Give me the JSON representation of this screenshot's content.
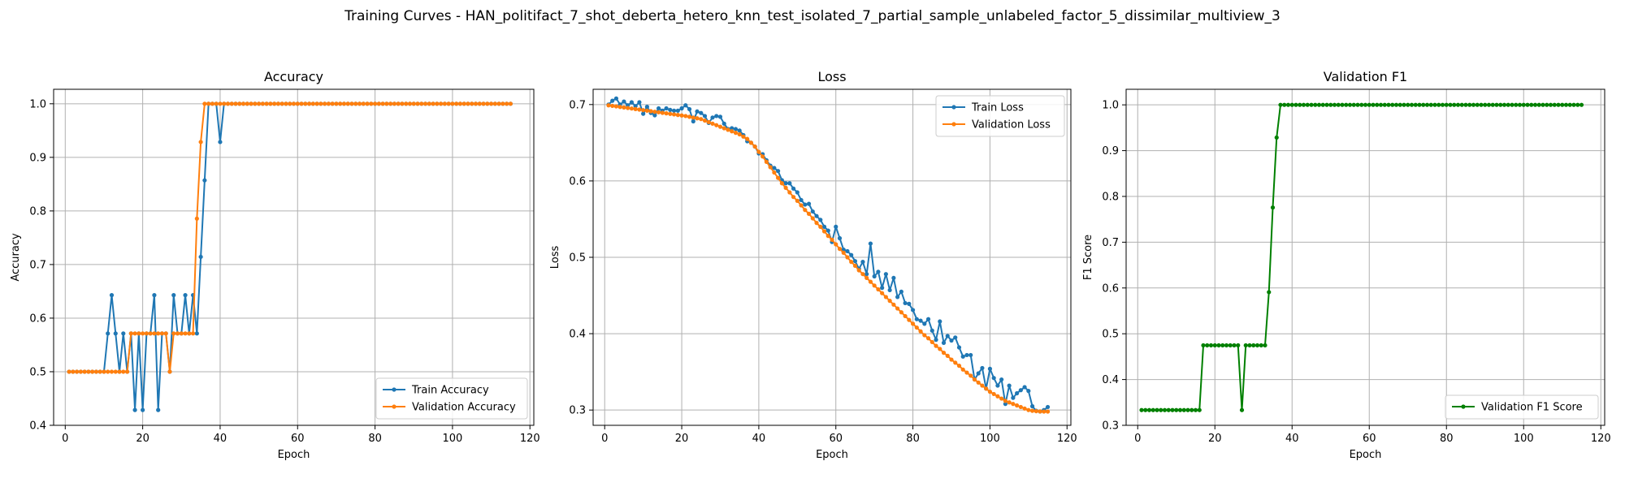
{
  "suptitle": "Training Curves - HAN_politifact_7_shot_deberta_hetero_knn_test_isolated_7_partial_sample_unlabeled_factor_5_dissimilar_multiview_3",
  "colors": {
    "train": "#1f77b4",
    "validation": "#ff7f0e",
    "f1": "#008000",
    "grid": "#b0b0b0"
  },
  "chart_data": [
    {
      "type": "line",
      "title": "Accuracy",
      "xlabel": "Epoch",
      "ylabel": "Accuracy",
      "xlim": [
        -3,
        121
      ],
      "ylim": [
        0.4,
        1.027
      ],
      "xticks": [
        0,
        20,
        40,
        60,
        80,
        100,
        120
      ],
      "yticks": [
        0.4,
        0.5,
        0.6,
        0.7,
        0.8,
        0.9,
        1.0
      ],
      "ytick_decimals": 1,
      "grid": true,
      "legend_position": "lower-right",
      "series": [
        {
          "name": "Train Accuracy",
          "color": "#1f77b4",
          "x_start": 1,
          "values": [
            0.5,
            0.5,
            0.5,
            0.5,
            0.5,
            0.5,
            0.5,
            0.5,
            0.5,
            0.5,
            0.5714,
            0.6429,
            0.5714,
            0.5,
            0.5714,
            0.5,
            0.5714,
            0.4286,
            0.5714,
            0.4286,
            0.5714,
            0.5714,
            0.6429,
            0.4286,
            0.5714,
            0.5714,
            0.5,
            0.6429,
            0.5714,
            0.5714,
            0.6429,
            0.5714,
            0.6429,
            0.5714,
            0.7143,
            0.8571,
            1.0,
            1.0,
            1.0,
            0.9286,
            1.0,
            1.0,
            1.0,
            1.0,
            1.0,
            1.0,
            1.0,
            1.0,
            1.0,
            1.0,
            1.0,
            1.0,
            1.0,
            1.0,
            1.0,
            1.0,
            1.0,
            1.0,
            1.0,
            1.0,
            1.0,
            1.0,
            1.0,
            1.0,
            1.0,
            1.0,
            1.0,
            1.0,
            1.0,
            1.0,
            1.0,
            1.0,
            1.0,
            1.0,
            1.0,
            1.0,
            1.0,
            1.0,
            1.0,
            1.0,
            1.0,
            1.0,
            1.0,
            1.0,
            1.0,
            1.0,
            1.0,
            1.0,
            1.0,
            1.0,
            1.0,
            1.0,
            1.0,
            1.0,
            1.0,
            1.0,
            1.0,
            1.0,
            1.0,
            1.0,
            1.0,
            1.0,
            1.0,
            1.0,
            1.0,
            1.0,
            1.0,
            1.0,
            1.0,
            1.0,
            1.0,
            1.0,
            1.0,
            1.0,
            1.0
          ]
        },
        {
          "name": "Validation Accuracy",
          "color": "#ff7f0e",
          "x_start": 1,
          "values": [
            0.5,
            0.5,
            0.5,
            0.5,
            0.5,
            0.5,
            0.5,
            0.5,
            0.5,
            0.5,
            0.5,
            0.5,
            0.5,
            0.5,
            0.5,
            0.5,
            0.5714,
            0.5714,
            0.5714,
            0.5714,
            0.5714,
            0.5714,
            0.5714,
            0.5714,
            0.5714,
            0.5714,
            0.5,
            0.5714,
            0.5714,
            0.5714,
            0.5714,
            0.5714,
            0.5714,
            0.7857,
            0.9286,
            1.0,
            1.0,
            1.0,
            1.0,
            1.0,
            1.0,
            1.0,
            1.0,
            1.0,
            1.0,
            1.0,
            1.0,
            1.0,
            1.0,
            1.0,
            1.0,
            1.0,
            1.0,
            1.0,
            1.0,
            1.0,
            1.0,
            1.0,
            1.0,
            1.0,
            1.0,
            1.0,
            1.0,
            1.0,
            1.0,
            1.0,
            1.0,
            1.0,
            1.0,
            1.0,
            1.0,
            1.0,
            1.0,
            1.0,
            1.0,
            1.0,
            1.0,
            1.0,
            1.0,
            1.0,
            1.0,
            1.0,
            1.0,
            1.0,
            1.0,
            1.0,
            1.0,
            1.0,
            1.0,
            1.0,
            1.0,
            1.0,
            1.0,
            1.0,
            1.0,
            1.0,
            1.0,
            1.0,
            1.0,
            1.0,
            1.0,
            1.0,
            1.0,
            1.0,
            1.0,
            1.0,
            1.0,
            1.0,
            1.0,
            1.0,
            1.0,
            1.0,
            1.0,
            1.0,
            1.0
          ]
        }
      ]
    },
    {
      "type": "line",
      "title": "Loss",
      "xlabel": "Epoch",
      "ylabel": "Loss",
      "xlim": [
        -3,
        121
      ],
      "ylim": [
        0.28,
        0.72
      ],
      "xticks": [
        0,
        20,
        40,
        60,
        80,
        100,
        120
      ],
      "yticks": [
        0.3,
        0.4,
        0.5,
        0.6,
        0.7
      ],
      "ytick_decimals": 1,
      "grid": true,
      "legend_position": "upper-right",
      "series": [
        {
          "name": "Train Loss",
          "color": "#1f77b4",
          "x_start": 1,
          "values": [
            0.7,
            0.705,
            0.708,
            0.7,
            0.704,
            0.699,
            0.703,
            0.698,
            0.703,
            0.688,
            0.697,
            0.689,
            0.686,
            0.695,
            0.692,
            0.695,
            0.693,
            0.692,
            0.692,
            0.695,
            0.699,
            0.694,
            0.678,
            0.691,
            0.689,
            0.685,
            0.676,
            0.683,
            0.685,
            0.684,
            0.675,
            0.668,
            0.669,
            0.668,
            0.666,
            0.66,
            0.652,
            0.65,
            0.645,
            0.636,
            0.635,
            0.627,
            0.62,
            0.617,
            0.613,
            0.601,
            0.597,
            0.597,
            0.59,
            0.585,
            0.575,
            0.569,
            0.57,
            0.56,
            0.554,
            0.549,
            0.54,
            0.535,
            0.52,
            0.54,
            0.525,
            0.51,
            0.508,
            0.503,
            0.495,
            0.485,
            0.494,
            0.478,
            0.518,
            0.475,
            0.481,
            0.46,
            0.478,
            0.457,
            0.473,
            0.448,
            0.455,
            0.44,
            0.439,
            0.431,
            0.419,
            0.417,
            0.413,
            0.419,
            0.404,
            0.392,
            0.416,
            0.388,
            0.397,
            0.391,
            0.395,
            0.382,
            0.37,
            0.372,
            0.372,
            0.34,
            0.348,
            0.355,
            0.328,
            0.354,
            0.342,
            0.332,
            0.34,
            0.308,
            0.332,
            0.316,
            0.322,
            0.326,
            0.33,
            0.325,
            0.305,
            0.299,
            0.298,
            0.3,
            0.304
          ]
        },
        {
          "name": "Validation Loss",
          "color": "#ff7f0e",
          "x_start": 1,
          "values": [
            0.699,
            0.6983,
            0.6976,
            0.6969,
            0.6962,
            0.6955,
            0.6948,
            0.6941,
            0.6934,
            0.6927,
            0.692,
            0.6913,
            0.6906,
            0.6899,
            0.6892,
            0.6885,
            0.6878,
            0.6871,
            0.6864,
            0.6857,
            0.685,
            0.684,
            0.683,
            0.682,
            0.681,
            0.679,
            0.677,
            0.675,
            0.673,
            0.671,
            0.669,
            0.667,
            0.665,
            0.663,
            0.661,
            0.658,
            0.655,
            0.65,
            0.645,
            0.638,
            0.632,
            0.625,
            0.618,
            0.611,
            0.604,
            0.597,
            0.591,
            0.585,
            0.579,
            0.574,
            0.568,
            0.562,
            0.557,
            0.551,
            0.545,
            0.54,
            0.534,
            0.528,
            0.523,
            0.517,
            0.511,
            0.506,
            0.5,
            0.494,
            0.489,
            0.483,
            0.478,
            0.473,
            0.468,
            0.463,
            0.458,
            0.453,
            0.448,
            0.443,
            0.438,
            0.433,
            0.428,
            0.423,
            0.418,
            0.413,
            0.408,
            0.403,
            0.398,
            0.394,
            0.389,
            0.384,
            0.38,
            0.375,
            0.371,
            0.366,
            0.362,
            0.358,
            0.353,
            0.349,
            0.345,
            0.34,
            0.336,
            0.332,
            0.328,
            0.324,
            0.321,
            0.318,
            0.315,
            0.312,
            0.31,
            0.308,
            0.306,
            0.304,
            0.302,
            0.3,
            0.299,
            0.2985,
            0.2982,
            0.298,
            0.298
          ]
        }
      ]
    },
    {
      "type": "line",
      "title": "Validation F1",
      "xlabel": "Epoch",
      "ylabel": "F1 Score",
      "xlim": [
        -3,
        121
      ],
      "ylim": [
        0.3,
        1.034
      ],
      "xticks": [
        0,
        20,
        40,
        60,
        80,
        100,
        120
      ],
      "yticks": [
        0.3,
        0.4,
        0.5,
        0.6,
        0.7,
        0.8,
        0.9,
        1.0
      ],
      "ytick_decimals": 1,
      "grid": true,
      "legend_position": "lower-right",
      "series": [
        {
          "name": "Validation F1 Score",
          "color": "#008000",
          "x_start": 1,
          "values": [
            0.3333,
            0.3333,
            0.3333,
            0.3333,
            0.3333,
            0.3333,
            0.3333,
            0.3333,
            0.3333,
            0.3333,
            0.3333,
            0.3333,
            0.3333,
            0.3333,
            0.3333,
            0.3333,
            0.4747,
            0.4747,
            0.4747,
            0.4747,
            0.4747,
            0.4747,
            0.4747,
            0.4747,
            0.4747,
            0.4747,
            0.3333,
            0.4747,
            0.4747,
            0.4747,
            0.4747,
            0.4747,
            0.4747,
            0.5909,
            0.7757,
            0.9286,
            1.0,
            1.0,
            1.0,
            1.0,
            1.0,
            1.0,
            1.0,
            1.0,
            1.0,
            1.0,
            1.0,
            1.0,
            1.0,
            1.0,
            1.0,
            1.0,
            1.0,
            1.0,
            1.0,
            1.0,
            1.0,
            1.0,
            1.0,
            1.0,
            1.0,
            1.0,
            1.0,
            1.0,
            1.0,
            1.0,
            1.0,
            1.0,
            1.0,
            1.0,
            1.0,
            1.0,
            1.0,
            1.0,
            1.0,
            1.0,
            1.0,
            1.0,
            1.0,
            1.0,
            1.0,
            1.0,
            1.0,
            1.0,
            1.0,
            1.0,
            1.0,
            1.0,
            1.0,
            1.0,
            1.0,
            1.0,
            1.0,
            1.0,
            1.0,
            1.0,
            1.0,
            1.0,
            1.0,
            1.0,
            1.0,
            1.0,
            1.0,
            1.0,
            1.0,
            1.0,
            1.0,
            1.0,
            1.0,
            1.0,
            1.0,
            1.0,
            1.0,
            1.0,
            1.0
          ]
        }
      ]
    }
  ]
}
